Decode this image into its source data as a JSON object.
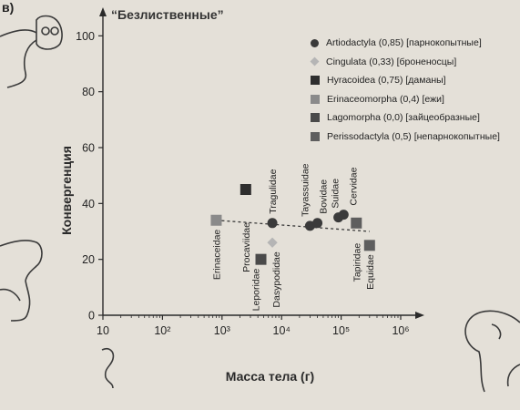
{
  "panel_label": "в)",
  "chart_data": {
    "type": "scatter",
    "title": "“Безлиственные”",
    "xlabel": "Масса тела (г)",
    "ylabel": "Конвергенция",
    "x_scale": "log",
    "xlim": [
      10,
      1000000
    ],
    "ylim": [
      0,
      105
    ],
    "x_ticks": [
      {
        "value": 10,
        "label": "10"
      },
      {
        "value": 100,
        "label": "10²"
      },
      {
        "value": 1000,
        "label": "10³"
      },
      {
        "value": 10000,
        "label": "10⁴"
      },
      {
        "value": 100000,
        "label": "10⁵"
      },
      {
        "value": 1000000,
        "label": "10⁶"
      }
    ],
    "y_ticks": [
      0,
      20,
      40,
      60,
      80,
      100
    ],
    "legend_position": "top-right",
    "grid": false,
    "legend": [
      {
        "label": "Artiodactyla (0,85) [парнокопытные]",
        "marker": "circle",
        "color": "#3a3a3a"
      },
      {
        "label": "Cingulata (0,33) [броненосцы]",
        "marker": "diamond",
        "color": "#b5b5b5"
      },
      {
        "label": "Hyracoidea (0,75) [даманы]",
        "marker": "square",
        "color": "#2e2e2e"
      },
      {
        "label": "Erinaceomorpha (0,4) [ежи]",
        "marker": "square",
        "color": "#8a8a8a"
      },
      {
        "label": "Lagomorpha (0,0) [зайцеобразные]",
        "marker": "square",
        "color": "#4a4a4a"
      },
      {
        "label": "Perissodactyla (0,5) [непарнокопытные]",
        "marker": "square",
        "color": "#5e5e5e"
      }
    ],
    "series": [
      {
        "group": 0,
        "points": [
          {
            "x": 7000,
            "y": 33,
            "label": "Tragulidae"
          },
          {
            "x": 30000,
            "y": 32,
            "label": "Tayassuidae"
          },
          {
            "x": 40000,
            "y": 33,
            "label": "Bovidae"
          },
          {
            "x": 90000,
            "y": 35,
            "label": "Suidae"
          },
          {
            "x": 110000,
            "y": 36,
            "label": "Cervidae"
          }
        ]
      },
      {
        "group": 1,
        "points": [
          {
            "x": 7000,
            "y": 26,
            "label": "Dasypodidae"
          }
        ]
      },
      {
        "group": 2,
        "points": [
          {
            "x": 2500,
            "y": 45,
            "label": "Procaviidae"
          }
        ]
      },
      {
        "group": 3,
        "points": [
          {
            "x": 800,
            "y": 34,
            "label": "Erinaceidae"
          }
        ]
      },
      {
        "group": 4,
        "points": [
          {
            "x": 4500,
            "y": 20,
            "label": "Leporidae"
          }
        ]
      },
      {
        "group": 5,
        "points": [
          {
            "x": 180000,
            "y": 33,
            "label": "Tapiridae"
          },
          {
            "x": 300000,
            "y": 25,
            "label": "Equidae"
          }
        ]
      }
    ],
    "trendline": {
      "x": [
        800,
        300000
      ],
      "y": [
        34,
        30
      ]
    }
  }
}
